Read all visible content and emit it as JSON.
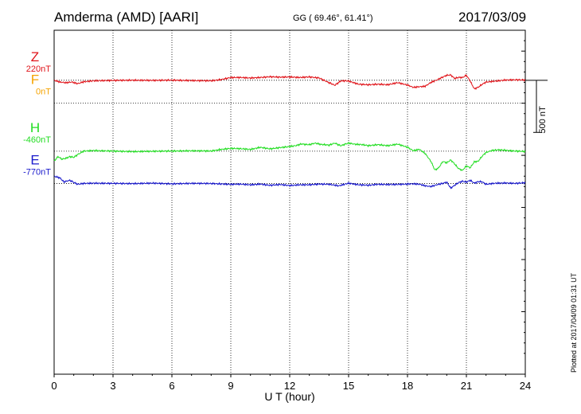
{
  "header": {
    "station": "Amderma (AMD)  [AARI]",
    "coords": "GG ( 69.46°,  61.41°)",
    "date": "2017/03/09"
  },
  "side_note": "Plotted at 2017/04/09 01:31  UT",
  "chart_data": {
    "type": "line",
    "xlabel": "U T (hour)",
    "xlim": [
      0,
      24
    ],
    "xticks": [
      0,
      3,
      6,
      9,
      12,
      15,
      18,
      21,
      24
    ],
    "ylim": [
      -2600,
      700
    ],
    "grid": true,
    "scale_bar": {
      "label": "500 nT",
      "value": 500
    },
    "channels": [
      {
        "name": "F",
        "offset_label": "0nT",
        "baseline": 0,
        "color": "#f5a300"
      },
      {
        "name": "H",
        "offset_label": "-460nT",
        "baseline": -460,
        "color": "#22dd22"
      },
      {
        "name": "E",
        "offset_label": "-770nT",
        "baseline": -770,
        "color": "#1a1acc"
      },
      {
        "name": "Z",
        "offset_label": "220nT",
        "baseline": 220,
        "color": "#e0141a"
      }
    ],
    "series": [
      {
        "name": "H",
        "color": "#22dd22",
        "x": [
          0,
          0.2,
          0.4,
          0.6,
          0.8,
          1.0,
          1.2,
          1.5,
          2,
          3,
          4,
          5,
          6,
          7,
          8,
          8.5,
          9,
          9.5,
          10,
          10.5,
          11,
          11.5,
          12,
          12.3,
          12.6,
          12.8,
          13,
          13.3,
          13.6,
          14,
          14.3,
          14.6,
          15,
          15.3,
          15.6,
          16,
          16.5,
          17,
          17.5,
          18,
          18.3,
          18.6,
          18.9,
          19.2,
          19.4,
          19.6,
          19.8,
          20.0,
          20.2,
          20.4,
          20.6,
          20.8,
          21.0,
          21.2,
          21.4,
          21.6,
          21.8,
          22,
          22.3,
          22.6,
          23,
          23.5,
          24
        ],
        "y": [
          -555,
          -510,
          -535,
          -530,
          -515,
          -520,
          -490,
          -460,
          -455,
          -460,
          -465,
          -462,
          -460,
          -458,
          -460,
          -445,
          -435,
          -438,
          -445,
          -425,
          -440,
          -428,
          -418,
          -410,
          -390,
          -398,
          -400,
          -385,
          -395,
          -405,
          -385,
          -408,
          -385,
          -395,
          -395,
          -410,
          -400,
          -410,
          -395,
          -425,
          -458,
          -440,
          -480,
          -560,
          -640,
          -615,
          -560,
          -575,
          -545,
          -580,
          -625,
          -645,
          -605,
          -620,
          -560,
          -555,
          -510,
          -475,
          -455,
          -445,
          -455,
          -462,
          -465
        ]
      },
      {
        "name": "E",
        "color": "#1a1acc",
        "x": [
          0,
          0.3,
          0.5,
          0.8,
          1.0,
          1.2,
          1.5,
          2,
          3,
          4,
          5,
          6,
          7,
          8,
          9,
          9.5,
          10,
          10.5,
          11,
          11.5,
          12,
          12.5,
          13,
          13.5,
          14,
          14.5,
          15,
          15.5,
          16,
          16.5,
          17,
          17.5,
          18,
          18.3,
          18.6,
          18.9,
          19.2,
          19.5,
          19.8,
          20.0,
          20.2,
          20.4,
          20.6,
          20.8,
          21.0,
          21.2,
          21.4,
          21.6,
          21.8,
          22,
          22.5,
          23,
          23.5,
          24
        ],
        "y": [
          -700,
          -720,
          -755,
          -742,
          -760,
          -775,
          -770,
          -768,
          -770,
          -772,
          -768,
          -775,
          -770,
          -772,
          -780,
          -778,
          -785,
          -778,
          -790,
          -782,
          -792,
          -785,
          -785,
          -778,
          -780,
          -795,
          -770,
          -785,
          -790,
          -780,
          -783,
          -782,
          -778,
          -775,
          -775,
          -790,
          -800,
          -785,
          -770,
          -760,
          -815,
          -785,
          -760,
          -750,
          -760,
          -740,
          -765,
          -750,
          -755,
          -780,
          -770,
          -768,
          -772,
          -765
        ]
      },
      {
        "name": "Z",
        "color": "#e0141a",
        "x": [
          0,
          0.3,
          0.6,
          0.9,
          1.2,
          1.5,
          2,
          3,
          4,
          5,
          6,
          7,
          8,
          8.5,
          9,
          9.5,
          10,
          10.5,
          11,
          11.5,
          12,
          12.5,
          13,
          13.5,
          14,
          14.3,
          14.6,
          15,
          15.5,
          16,
          16.5,
          17,
          17.5,
          18,
          18.3,
          18.6,
          18.9,
          19.2,
          19.5,
          19.8,
          20.0,
          20.2,
          20.4,
          20.6,
          20.8,
          21.0,
          21.2,
          21.4,
          21.6,
          21.8,
          22,
          22.5,
          23,
          23.5,
          24
        ],
        "y": [
          220,
          200,
          195,
          205,
          190,
          205,
          215,
          218,
          220,
          218,
          220,
          216,
          214,
          225,
          245,
          245,
          240,
          245,
          252,
          248,
          250,
          245,
          250,
          240,
          195,
          170,
          215,
          210,
          180,
          175,
          180,
          175,
          195,
          172,
          150,
          160,
          165,
          200,
          220,
          250,
          265,
          270,
          240,
          250,
          245,
          265,
          210,
          140,
          155,
          180,
          200,
          210,
          220,
          222,
          220
        ]
      }
    ]
  }
}
